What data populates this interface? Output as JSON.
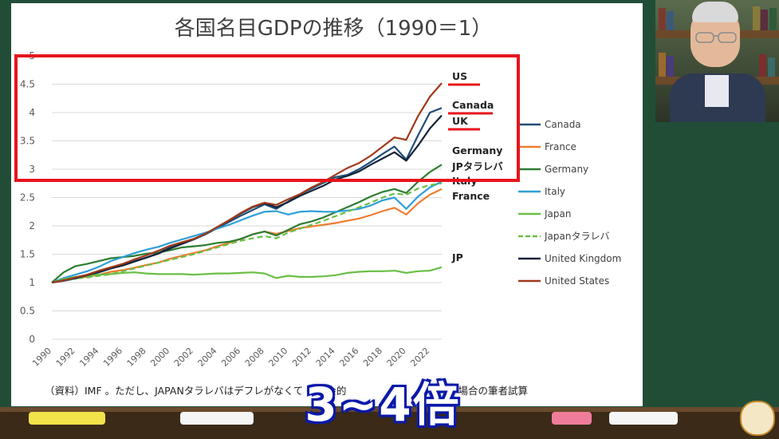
{
  "slide": {
    "title": "各国名目GDPの推移（1990＝1）",
    "source_note": "（資料）IMF 。ただし、JAPANタラレバはデフレがなくて",
    "source_note_tail": "な社会的",
    "source_note_end": "場合の筆者試算"
  },
  "overlay": {
    "caption": "3~4倍"
  },
  "annotations": {
    "labels": [
      "US",
      "Canada",
      "UK",
      "Germany",
      "JPタラレバ",
      "Italy",
      "France",
      "JP"
    ],
    "highlight_color": "#e8141c",
    "underline_color": "#e8141c"
  },
  "chart_data": {
    "type": "line",
    "title": "各国名目GDPの推移（1990＝1）",
    "xlabel": "",
    "ylabel": "",
    "ylim": [
      0,
      5
    ],
    "yticks": [
      "0",
      "0.5",
      "1",
      "1.5",
      "2",
      "2.5",
      "3",
      "3.5",
      "4",
      "4.5",
      "5"
    ],
    "xticks": [
      "1990",
      "1992",
      "1994",
      "1996",
      "1998",
      "2000",
      "2002",
      "2004",
      "2006",
      "2008",
      "2010",
      "2012",
      "2014",
      "2016",
      "2018",
      "2020",
      "2022"
    ],
    "grid": "horizontal",
    "legend_position": "right",
    "x": [
      1990,
      1991,
      1992,
      1993,
      1994,
      1995,
      1996,
      1997,
      1998,
      1999,
      2000,
      2001,
      2002,
      2003,
      2004,
      2005,
      2006,
      2007,
      2008,
      2009,
      2010,
      2011,
      2012,
      2013,
      2014,
      2015,
      2016,
      2017,
      2018,
      2019,
      2020,
      2021,
      2022,
      2023
    ],
    "series": [
      {
        "name": "Canada",
        "color": "#1f4e79",
        "dash": false,
        "values": [
          1.0,
          1.03,
          1.07,
          1.12,
          1.18,
          1.25,
          1.31,
          1.38,
          1.44,
          1.52,
          1.63,
          1.69,
          1.76,
          1.85,
          1.96,
          2.07,
          2.18,
          2.28,
          2.38,
          2.3,
          2.43,
          2.56,
          2.66,
          2.76,
          2.86,
          2.9,
          3.0,
          3.13,
          3.27,
          3.4,
          3.17,
          3.6,
          4.0,
          4.08
        ]
      },
      {
        "name": "France",
        "color": "#ed7d31",
        "dash": false,
        "values": [
          1.0,
          1.04,
          1.08,
          1.1,
          1.14,
          1.19,
          1.22,
          1.26,
          1.31,
          1.35,
          1.42,
          1.47,
          1.52,
          1.57,
          1.64,
          1.7,
          1.77,
          1.85,
          1.9,
          1.86,
          1.91,
          1.96,
          1.99,
          2.02,
          2.05,
          2.09,
          2.13,
          2.19,
          2.26,
          2.32,
          2.2,
          2.4,
          2.55,
          2.65
        ]
      },
      {
        "name": "Germany",
        "color": "#2e7d32",
        "dash": false,
        "values": [
          1.0,
          1.18,
          1.29,
          1.33,
          1.38,
          1.43,
          1.45,
          1.47,
          1.51,
          1.53,
          1.57,
          1.62,
          1.64,
          1.66,
          1.7,
          1.72,
          1.77,
          1.85,
          1.9,
          1.83,
          1.93,
          2.03,
          2.08,
          2.15,
          2.24,
          2.33,
          2.42,
          2.52,
          2.6,
          2.65,
          2.58,
          2.78,
          2.95,
          3.08
        ]
      },
      {
        "name": "Italy",
        "color": "#2e9fd6",
        "dash": false,
        "values": [
          1.0,
          1.08,
          1.14,
          1.2,
          1.28,
          1.38,
          1.45,
          1.52,
          1.58,
          1.63,
          1.7,
          1.76,
          1.82,
          1.88,
          1.95,
          2.02,
          2.1,
          2.18,
          2.25,
          2.26,
          2.2,
          2.25,
          2.26,
          2.25,
          2.25,
          2.27,
          2.3,
          2.36,
          2.45,
          2.5,
          2.3,
          2.52,
          2.68,
          2.78
        ]
      },
      {
        "name": "Japan",
        "color": "#6abf45",
        "dash": false,
        "values": [
          1.0,
          1.06,
          1.1,
          1.12,
          1.14,
          1.15,
          1.17,
          1.18,
          1.16,
          1.15,
          1.15,
          1.15,
          1.14,
          1.15,
          1.16,
          1.16,
          1.17,
          1.18,
          1.16,
          1.08,
          1.12,
          1.1,
          1.1,
          1.11,
          1.13,
          1.17,
          1.19,
          1.2,
          1.2,
          1.21,
          1.17,
          1.2,
          1.21,
          1.27
        ]
      },
      {
        "name": "Japanタラレバ",
        "color": "#6abf45",
        "dash": true,
        "values": [
          1.0,
          1.04,
          1.07,
          1.09,
          1.12,
          1.15,
          1.2,
          1.25,
          1.3,
          1.35,
          1.4,
          1.45,
          1.5,
          1.56,
          1.62,
          1.68,
          1.74,
          1.78,
          1.82,
          1.78,
          1.88,
          1.95,
          2.02,
          2.09,
          2.17,
          2.25,
          2.33,
          2.41,
          2.5,
          2.57,
          2.55,
          2.66,
          2.72,
          2.75
        ]
      },
      {
        "name": "United Kingdom",
        "color": "#142338",
        "dash": false,
        "values": [
          1.0,
          1.04,
          1.08,
          1.13,
          1.19,
          1.25,
          1.3,
          1.37,
          1.44,
          1.51,
          1.6,
          1.68,
          1.76,
          1.86,
          1.98,
          2.1,
          2.22,
          2.33,
          2.4,
          2.33,
          2.42,
          2.53,
          2.62,
          2.71,
          2.82,
          2.88,
          2.96,
          3.08,
          3.19,
          3.3,
          3.15,
          3.42,
          3.72,
          3.95
        ]
      },
      {
        "name": "United States",
        "color": "#a0391a",
        "dash": false,
        "values": [
          1.0,
          1.04,
          1.09,
          1.14,
          1.21,
          1.27,
          1.33,
          1.41,
          1.48,
          1.56,
          1.65,
          1.71,
          1.77,
          1.86,
          1.98,
          2.1,
          2.23,
          2.34,
          2.41,
          2.37,
          2.47,
          2.56,
          2.68,
          2.78,
          2.9,
          3.02,
          3.11,
          3.24,
          3.4,
          3.56,
          3.52,
          3.94,
          4.28,
          4.52
        ]
      }
    ]
  }
}
